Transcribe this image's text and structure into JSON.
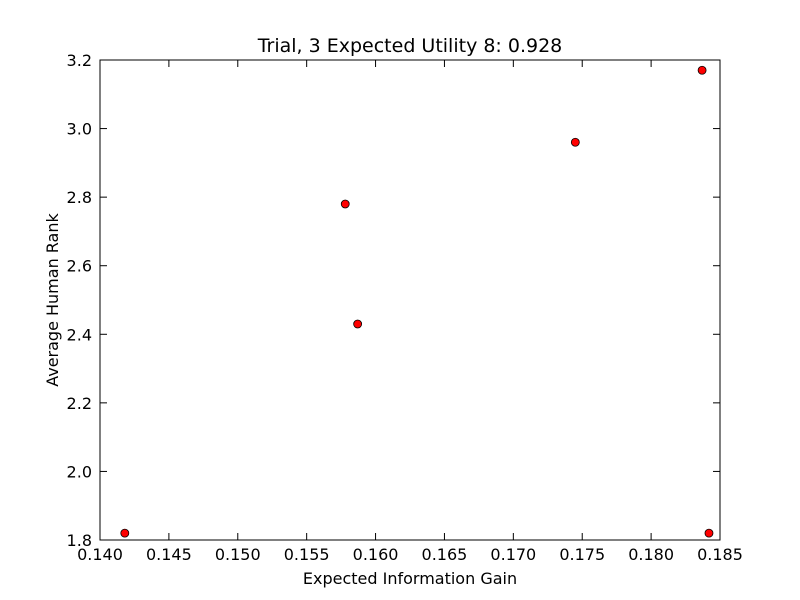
{
  "chart_data": {
    "type": "scatter",
    "title": "Trial, 3 Expected Utility 8: 0.928",
    "xlabel": "Expected Information Gain",
    "ylabel": "Average Human Rank",
    "xlim": [
      0.14,
      0.185
    ],
    "ylim": [
      1.8,
      3.2
    ],
    "xticks": [
      "0.140",
      "0.145",
      "0.150",
      "0.155",
      "0.160",
      "0.165",
      "0.170",
      "0.175",
      "0.180",
      "0.185"
    ],
    "yticks": [
      "1.8",
      "2.0",
      "2.2",
      "2.4",
      "2.6",
      "2.8",
      "3.0",
      "3.2"
    ],
    "grid": false,
    "marker_color": "#ff0000",
    "marker_edge_color": "#000000",
    "points": [
      {
        "x": 0.1418,
        "y": 1.82
      },
      {
        "x": 0.1578,
        "y": 2.78
      },
      {
        "x": 0.1587,
        "y": 2.43
      },
      {
        "x": 0.1745,
        "y": 2.96
      },
      {
        "x": 0.1837,
        "y": 3.17
      },
      {
        "x": 0.1842,
        "y": 1.82
      }
    ]
  }
}
